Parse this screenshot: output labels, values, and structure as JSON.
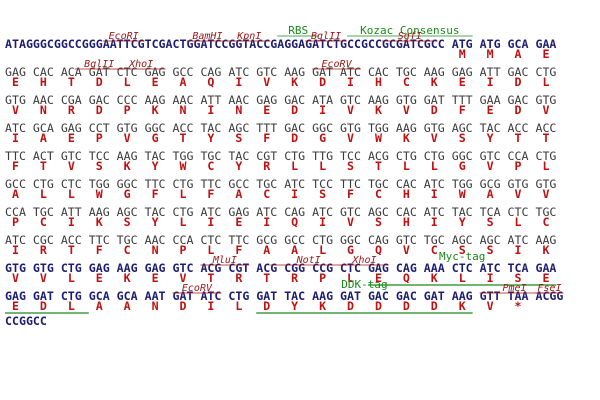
{
  "rows": [
    {
      "leader": "ATAGGGCGGCCGGGAATTCGTCGACTGGATCCGGTACCGAGGAGATCTGCCGCCGCGATCGCC",
      "codons": [
        "ATG",
        "ATG",
        "GCA",
        "GAA"
      ],
      "aa": [
        "M",
        "M",
        "A",
        "E"
      ],
      "sites": [
        "EcoRI",
        "BamHI",
        "KpnI",
        "RBS",
        "BglII",
        "Kozac Consensus",
        "SgfI"
      ]
    },
    {
      "codons": [
        "GAG",
        "CAC",
        "ACA",
        "GAT",
        "CTC",
        "GAG",
        "GCC",
        "CAG",
        "ATC",
        "GTC",
        "AAG",
        "GAT",
        "ATC",
        "CAC",
        "TGC",
        "AAG",
        "GAG",
        "ATT",
        "GAC",
        "CTG"
      ],
      "aa": [
        "E",
        "H",
        "T",
        "D",
        "L",
        "E",
        "A",
        "Q",
        "I",
        "V",
        "K",
        "D",
        "I",
        "H",
        "C",
        "K",
        "E",
        "I",
        "D",
        "L"
      ],
      "sites": [
        "BglII",
        "XhoI",
        "EcoRV"
      ]
    },
    {
      "codons": [
        "GTG",
        "AAC",
        "CGA",
        "GAC",
        "CCC",
        "AAG",
        "AAC",
        "ATT",
        "AAC",
        "GAG",
        "GAC",
        "ATA",
        "GTC",
        "AAG",
        "GTG",
        "GAT",
        "TTT",
        "GAA",
        "GAC",
        "GTG"
      ],
      "aa": [
        "V",
        "N",
        "R",
        "D",
        "P",
        "K",
        "N",
        "I",
        "N",
        "E",
        "D",
        "I",
        "V",
        "K",
        "V",
        "D",
        "F",
        "E",
        "D",
        "V"
      ]
    },
    {
      "codons": [
        "ATC",
        "GCA",
        "GAG",
        "CCT",
        "GTG",
        "GGC",
        "ACC",
        "TAC",
        "AGC",
        "TTT",
        "GAC",
        "GGC",
        "GTG",
        "TGG",
        "AAG",
        "GTG",
        "AGC",
        "TAC",
        "ACC",
        "ACC"
      ],
      "aa": [
        "I",
        "A",
        "E",
        "P",
        "V",
        "G",
        "T",
        "Y",
        "S",
        "F",
        "D",
        "G",
        "V",
        "W",
        "K",
        "V",
        "S",
        "Y",
        "T",
        "T"
      ]
    },
    {
      "codons": [
        "TTC",
        "ACT",
        "GTC",
        "TCC",
        "AAG",
        "TAC",
        "TGG",
        "TGC",
        "TAC",
        "CGT",
        "CTG",
        "TTG",
        "TCC",
        "ACG",
        "CTG",
        "CTG",
        "GGC",
        "GTC",
        "CCA",
        "CTG"
      ],
      "aa": [
        "F",
        "T",
        "V",
        "S",
        "K",
        "Y",
        "W",
        "C",
        "Y",
        "R",
        "L",
        "L",
        "S",
        "T",
        "L",
        "L",
        "G",
        "V",
        "P",
        "L"
      ]
    },
    {
      "codons": [
        "GCC",
        "CTG",
        "CTC",
        "TGG",
        "GGC",
        "TTC",
        "CTG",
        "TTC",
        "GCC",
        "TGC",
        "ATC",
        "TCC",
        "TTC",
        "TGC",
        "CAC",
        "ATC",
        "TGG",
        "GCG",
        "GTG",
        "GTG"
      ],
      "aa": [
        "A",
        "L",
        "L",
        "W",
        "G",
        "F",
        "L",
        "F",
        "A",
        "C",
        "I",
        "S",
        "F",
        "C",
        "H",
        "I",
        "W",
        "A",
        "V",
        "V"
      ]
    },
    {
      "codons": [
        "CCA",
        "TGC",
        "ATT",
        "AAG",
        "AGC",
        "TAC",
        "CTG",
        "ATC",
        "GAG",
        "ATC",
        "CAG",
        "ATC",
        "GTC",
        "AGC",
        "CAC",
        "ATC",
        "TAC",
        "TCA",
        "CTC",
        "TGC"
      ],
      "aa": [
        "P",
        "C",
        "I",
        "K",
        "S",
        "Y",
        "L",
        "I",
        "E",
        "I",
        "Q",
        "I",
        "V",
        "S",
        "H",
        "I",
        "Y",
        "S",
        "L",
        "C"
      ]
    },
    {
      "codons": [
        "ATC",
        "CGC",
        "ACC",
        "TTC",
        "TGC",
        "AAC",
        "CCA",
        "CTC",
        "TTC",
        "GCG",
        "GCC",
        "CTG",
        "GGC",
        "CAG",
        "GTC",
        "TGC",
        "AGC",
        "AGC",
        "ATC",
        "AAG"
      ],
      "aa": [
        "I",
        "R",
        "T",
        "F",
        "C",
        "N",
        "P",
        "L",
        "F",
        "A",
        "A",
        "L",
        "G",
        "Q",
        "V",
        "C",
        "S",
        "S",
        "I",
        "K"
      ]
    },
    {
      "codons": [
        "GTG",
        "GTG",
        "CTG",
        "GAG",
        "AAG",
        "GAG",
        "GTC",
        "ACG",
        "CGT",
        "ACG",
        "CGG",
        "CCG",
        "CTC",
        "GAG",
        "CAG",
        "AAA",
        "CTC",
        "ATC",
        "TCA",
        "GAA"
      ],
      "aa": [
        "V",
        "V",
        "L",
        "E",
        "K",
        "E",
        "V",
        "T",
        "R",
        "T",
        "R",
        "P",
        "L",
        "E",
        "Q",
        "K",
        "L",
        "I",
        "S",
        "E"
      ],
      "sites": [
        "MluI",
        "NotI",
        "XhoI",
        "Myc-tag"
      ]
    },
    {
      "codons": [
        "GAG",
        "GAT",
        "CTG",
        "GCA",
        "GCA",
        "AAT",
        "GAT",
        "ATC",
        "CTG",
        "GAT",
        "TAC",
        "AAG",
        "GAT",
        "GAC",
        "GAC",
        "GAT",
        "AAG",
        "GTT",
        "TAA",
        "ACGG"
      ],
      "aa": [
        "E",
        "D",
        "L",
        "A",
        "A",
        "N",
        "D",
        "I",
        "L",
        "D",
        "Y",
        "K",
        "D",
        "D",
        "D",
        "D",
        "K",
        "V",
        "*"
      ],
      "sites": [
        "EcoRV",
        "DDK-tag",
        "PmeI",
        "FseI"
      ]
    },
    {
      "leader": "CCGGCC"
    }
  ]
}
